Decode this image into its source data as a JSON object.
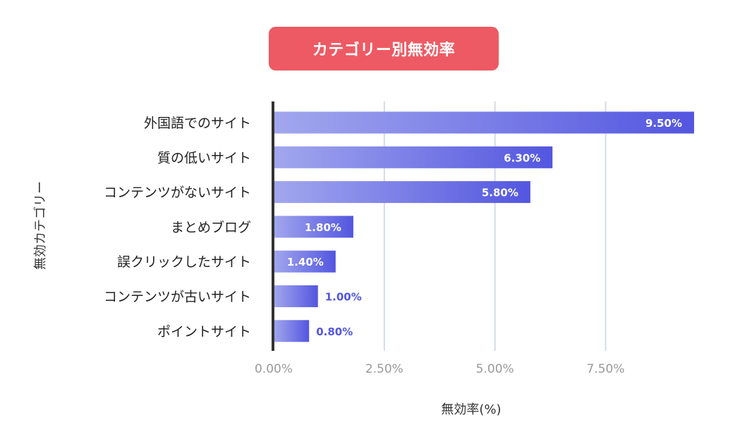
{
  "title": "カテゴリー別無効率",
  "colors": {
    "title_bg": "#ee5a63",
    "bar_start": "#a2a7ee",
    "bar_end": "#5356df",
    "grid": "#d3dbe8",
    "axis": "#333333",
    "label_inside": "#ffffff",
    "label_outside": "#5356df"
  },
  "chart_data": {
    "type": "bar",
    "orientation": "horizontal",
    "title": "カテゴリー別無効率",
    "xlabel": "無効率(%)",
    "ylabel": "無効カテゴリー",
    "categories": [
      "外国語でのサイト",
      "質の低いサイト",
      "コンテンツがないサイト",
      "まとめブログ",
      "誤クリックしたサイト",
      "コンテンツが古いサイト",
      "ポイントサイト"
    ],
    "values": [
      9.5,
      6.3,
      5.8,
      1.8,
      1.4,
      1.0,
      0.8
    ],
    "value_labels": [
      "9.50%",
      "6.30%",
      "5.80%",
      "1.80%",
      "1.40%",
      "1.00%",
      "0.80%"
    ],
    "xlim": [
      0,
      9.5
    ],
    "xticks": [
      0,
      2.5,
      5,
      7.5
    ],
    "xtick_labels": [
      "0.00%",
      "2.50%",
      "5.00%",
      "7.50%"
    ],
    "grid": true,
    "legend": false
  }
}
